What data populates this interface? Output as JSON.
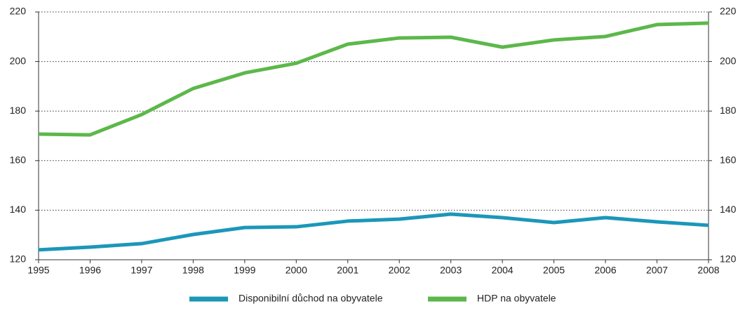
{
  "chart_data": {
    "type": "line",
    "categories": [
      "1995",
      "1996",
      "1997",
      "1998",
      "1999",
      "2000",
      "2001",
      "2002",
      "2003",
      "2004",
      "2005",
      "2006",
      "2007",
      "2008"
    ],
    "series": [
      {
        "name": "Disponibilní důchod na obyvatele",
        "color": "#1b97b9",
        "values": [
          124.0,
          125.1,
          126.5,
          130.2,
          133.0,
          133.3,
          135.6,
          136.4,
          138.4,
          137.0,
          135.0,
          137.0,
          135.3,
          133.9
        ]
      },
      {
        "name": "HDP na obyvatele",
        "color": "#5cb84a",
        "values": [
          170.7,
          170.4,
          178.6,
          189.1,
          195.4,
          199.3,
          207.0,
          209.5,
          209.8,
          205.8,
          208.7,
          210.1,
          214.9,
          215.5
        ]
      }
    ],
    "ylim": [
      120,
      220
    ],
    "yticks": [
      120,
      140,
      160,
      180,
      200,
      220
    ],
    "y2lim": [
      120,
      220
    ],
    "y2ticks": [
      120,
      140,
      160,
      180,
      200,
      220
    ],
    "grid": true,
    "legend": "bottom"
  }
}
